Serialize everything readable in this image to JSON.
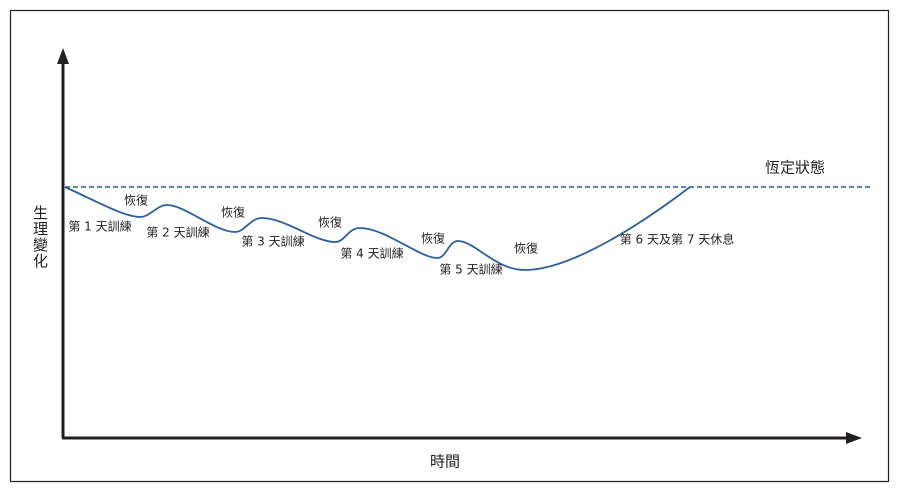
{
  "y_axis_label": "生理變化",
  "x_axis_label": "時間",
  "baseline_label": "恆定狀態",
  "annotations": [
    "第 1 天訓練",
    "恢復",
    "第 2 天訓練",
    "恢復",
    "第 3 天訓練",
    "恢復",
    "第 4 天訓練",
    "恢復",
    "第 5 天訓練",
    "恢復",
    "第 6 天及第 7 天休息"
  ]
}
